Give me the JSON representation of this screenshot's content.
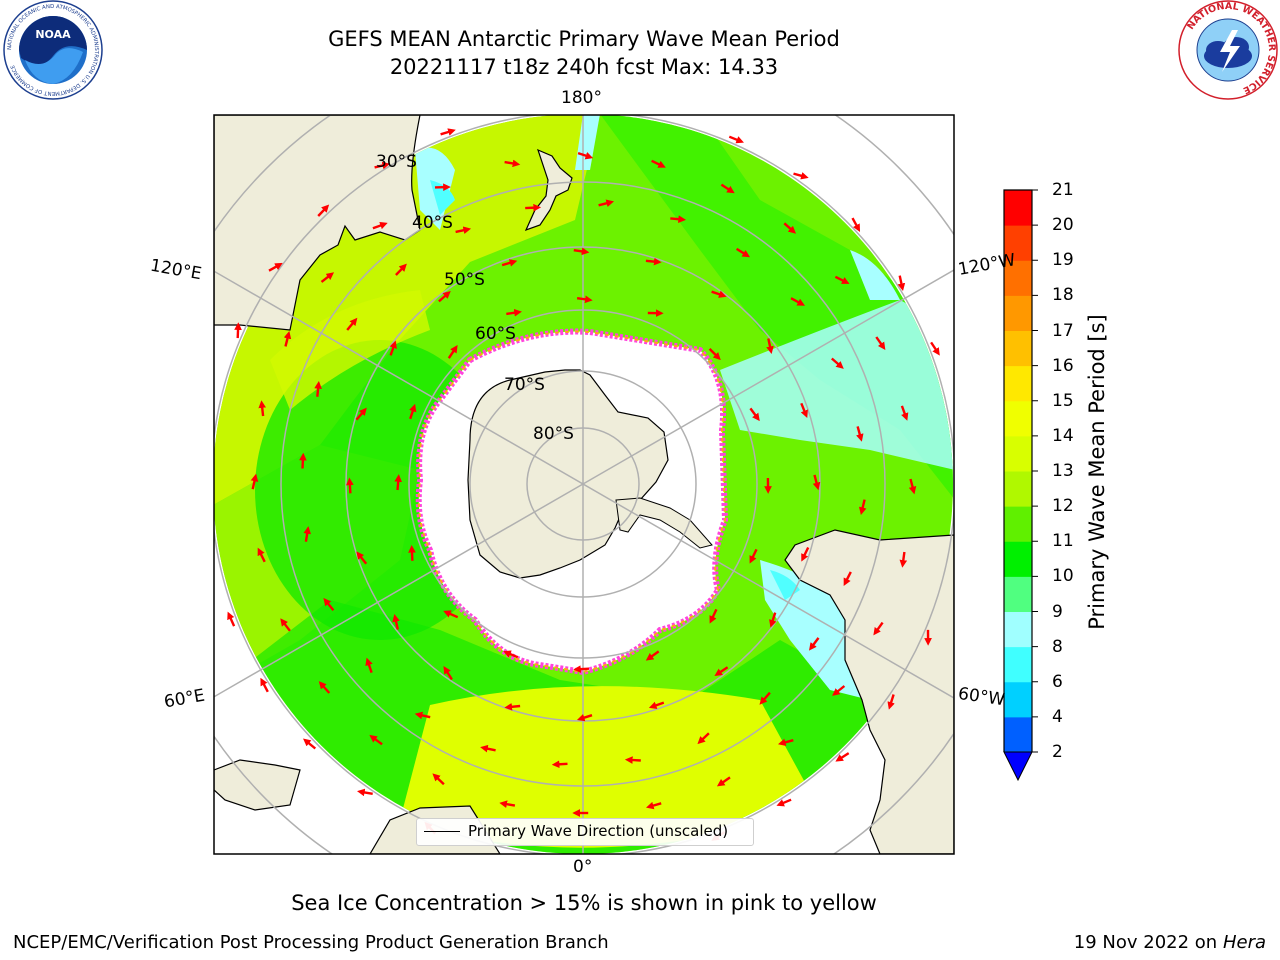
{
  "header": {
    "title_line1": "GEFS MEAN Antarctic Primary Wave Mean Period",
    "title_line2": "20221117 t18z 240h fcst   Max: 14.33"
  },
  "logos": {
    "left_icon": "noaa-logo-icon",
    "left_text": "NOAA",
    "left_ring_text": "NATIONAL OCEANIC AND ATMOSPHERIC ADMINISTRATION  U.S. DEPARTMENT OF COMMERCE",
    "right_icon": "nws-logo-icon",
    "right_ring_text": "NATIONAL WEATHER SERVICE"
  },
  "map": {
    "projection": "south-polar-stereographic",
    "longitude_labels": [
      "180°",
      "120°E",
      "120°W",
      "60°E",
      "60°W",
      "0°"
    ],
    "latitude_labels": [
      "30°S",
      "40°S",
      "50°S",
      "60°S",
      "70°S",
      "80°S"
    ],
    "colors": {
      "land": "#efedda",
      "ice_core": "#ffffff",
      "arrow": "#ff0000",
      "grid": "#b0b0b0"
    }
  },
  "legend": {
    "label": "Primary Wave Direction (unscaled)"
  },
  "colorbar": {
    "label": "Primary Wave Mean Period [s]",
    "ticks": [
      2,
      4,
      6,
      8,
      9,
      10,
      11,
      12,
      13,
      14,
      15,
      16,
      17,
      18,
      19,
      20,
      21
    ],
    "colors": [
      "#0060ff",
      "#00d0ff",
      "#40ffff",
      "#a0ffff",
      "#50ff80",
      "#00f000",
      "#60f000",
      "#b0f800",
      "#d8ff00",
      "#f0ff00",
      "#ffe800",
      "#ffc000",
      "#ff9800",
      "#ff7000",
      "#ff4000",
      "#ff0000"
    ],
    "extend_color": "#0000ff"
  },
  "footer": {
    "note": "Sea Ice Concentration > 15% is shown in pink to yellow",
    "credit": "NCEP/EMC/Verification Post Processing Product Generation Branch",
    "date": "19 Nov 2022 on",
    "host": "Hera"
  }
}
